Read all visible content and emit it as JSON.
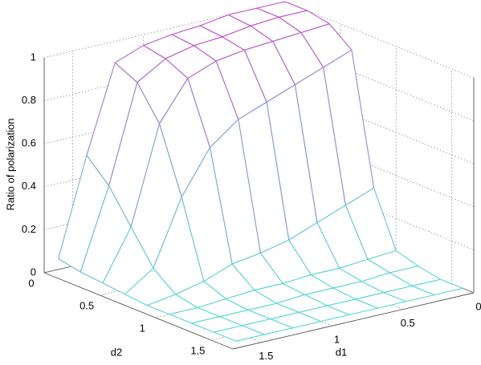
{
  "chart_data": {
    "type": "mesh3d",
    "zlabel": "Ratio of polarization",
    "xlabel": "d1",
    "ylabel": "d2",
    "x": [
      0,
      0.2,
      0.4,
      0.6,
      0.8,
      1.0,
      1.2,
      1.4,
      1.6
    ],
    "y": [
      0,
      0.2,
      0.4,
      0.6,
      0.8,
      1.0,
      1.2,
      1.4,
      1.6
    ],
    "z": [
      [
        1,
        1,
        1,
        0.98,
        0.97,
        0.95,
        0.9,
        0.5,
        0.05
      ],
      [
        1,
        1,
        0.99,
        0.97,
        0.96,
        0.93,
        0.85,
        0.4,
        0.03
      ],
      [
        0.98,
        0.97,
        0.96,
        0.95,
        0.93,
        0.88,
        0.7,
        0.25,
        0.02
      ],
      [
        0.9,
        0.85,
        0.8,
        0.75,
        0.7,
        0.6,
        0.4,
        0.1,
        0.01
      ],
      [
        0.3,
        0.25,
        0.2,
        0.15,
        0.12,
        0.1,
        0.05,
        0.02,
        0
      ],
      [
        0.05,
        0.04,
        0.03,
        0.03,
        0.02,
        0.02,
        0.01,
        0,
        0
      ],
      [
        0.02,
        0.02,
        0.01,
        0.01,
        0.01,
        0,
        0,
        0,
        0
      ],
      [
        0,
        0,
        0,
        0,
        0,
        0,
        0,
        0,
        0
      ],
      [
        0,
        0,
        0,
        0,
        0,
        0,
        0,
        0,
        0
      ]
    ],
    "xlim": [
      0,
      1.7
    ],
    "xticks": [
      0,
      0.5,
      1,
      1.5
    ],
    "ylim": [
      0,
      1.7
    ],
    "yticks": [
      0,
      0.5,
      1,
      1.5
    ],
    "zlim": [
      0,
      1
    ],
    "zticks": [
      0,
      0.2,
      0.4,
      0.6,
      0.8,
      1
    ],
    "colormap": [
      "#5ad6d6",
      "#c24cc8"
    ],
    "grid": true
  }
}
